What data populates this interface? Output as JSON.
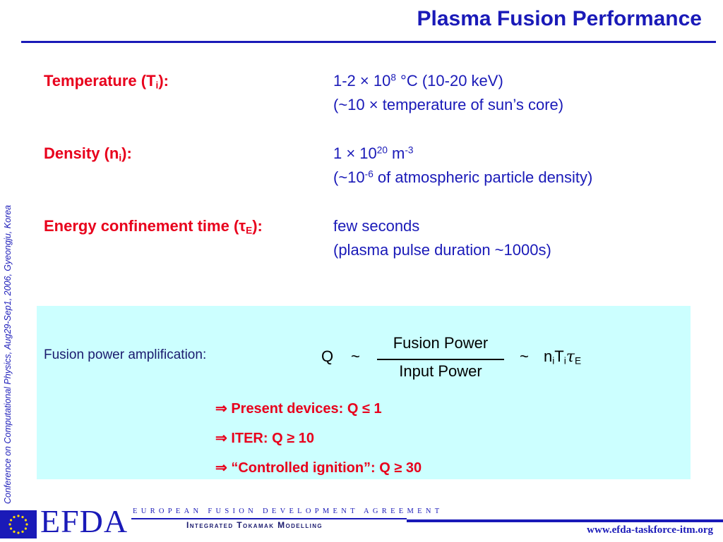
{
  "title": "Plasma Fusion Performance",
  "side_text": "Conference on Computational Physics, Aug29-Sep1, 2006, Gyeongju, Korea",
  "params": {
    "temperature": {
      "label_prefix": "Temperature (T",
      "label_sub": "i",
      "label_suffix": "):",
      "value_prefix": "1-2 × 10",
      "value_sup": "8",
      "value_suffix": " °C (10-20 keV)",
      "note": "(~10 × temperature of sun’s core)"
    },
    "density": {
      "label_prefix": "Density (n",
      "label_sub": "i",
      "label_suffix": "):",
      "value_prefix": "1 × 10",
      "value_sup": "20",
      "value_mid": " m",
      "value_sup2": "-3",
      "note_prefix": "(~10",
      "note_sup": "-6",
      "note_suffix": " of atmospheric particle density)"
    },
    "confinement": {
      "label_prefix": "Energy confinement time (",
      "label_tau": "τ",
      "label_sub": "E",
      "label_suffix": "):",
      "value": "few seconds",
      "note": "(plasma pulse duration ~1000s)"
    }
  },
  "amplification": {
    "label": "Fusion power amplification:",
    "q": "Q",
    "tilde": "~",
    "numerator": "Fusion  Power",
    "denominator": "Input  Power",
    "rhs_n": "n",
    "rhs_i1": "i",
    "rhs_t": "T",
    "rhs_i2": "i",
    "rhs_tau": "τ",
    "rhs_e": "E",
    "results": [
      "⇒ Present devices: Q ≤ 1",
      "⇒ ITER: Q ≥ 10",
      "⇒ “Controlled ignition”: Q ≥ 30"
    ]
  },
  "footer": {
    "logo": "EFDA",
    "long_name": "EUROPEAN FUSION DEVELOPMENT AGREEMENT",
    "project": "Integrated Tokamak Modelling",
    "url": "www.efda-taskforce-itm.org"
  },
  "colors": {
    "accent": "#1a1ab8",
    "highlight": "#e8001c",
    "box": "#ccffff"
  }
}
